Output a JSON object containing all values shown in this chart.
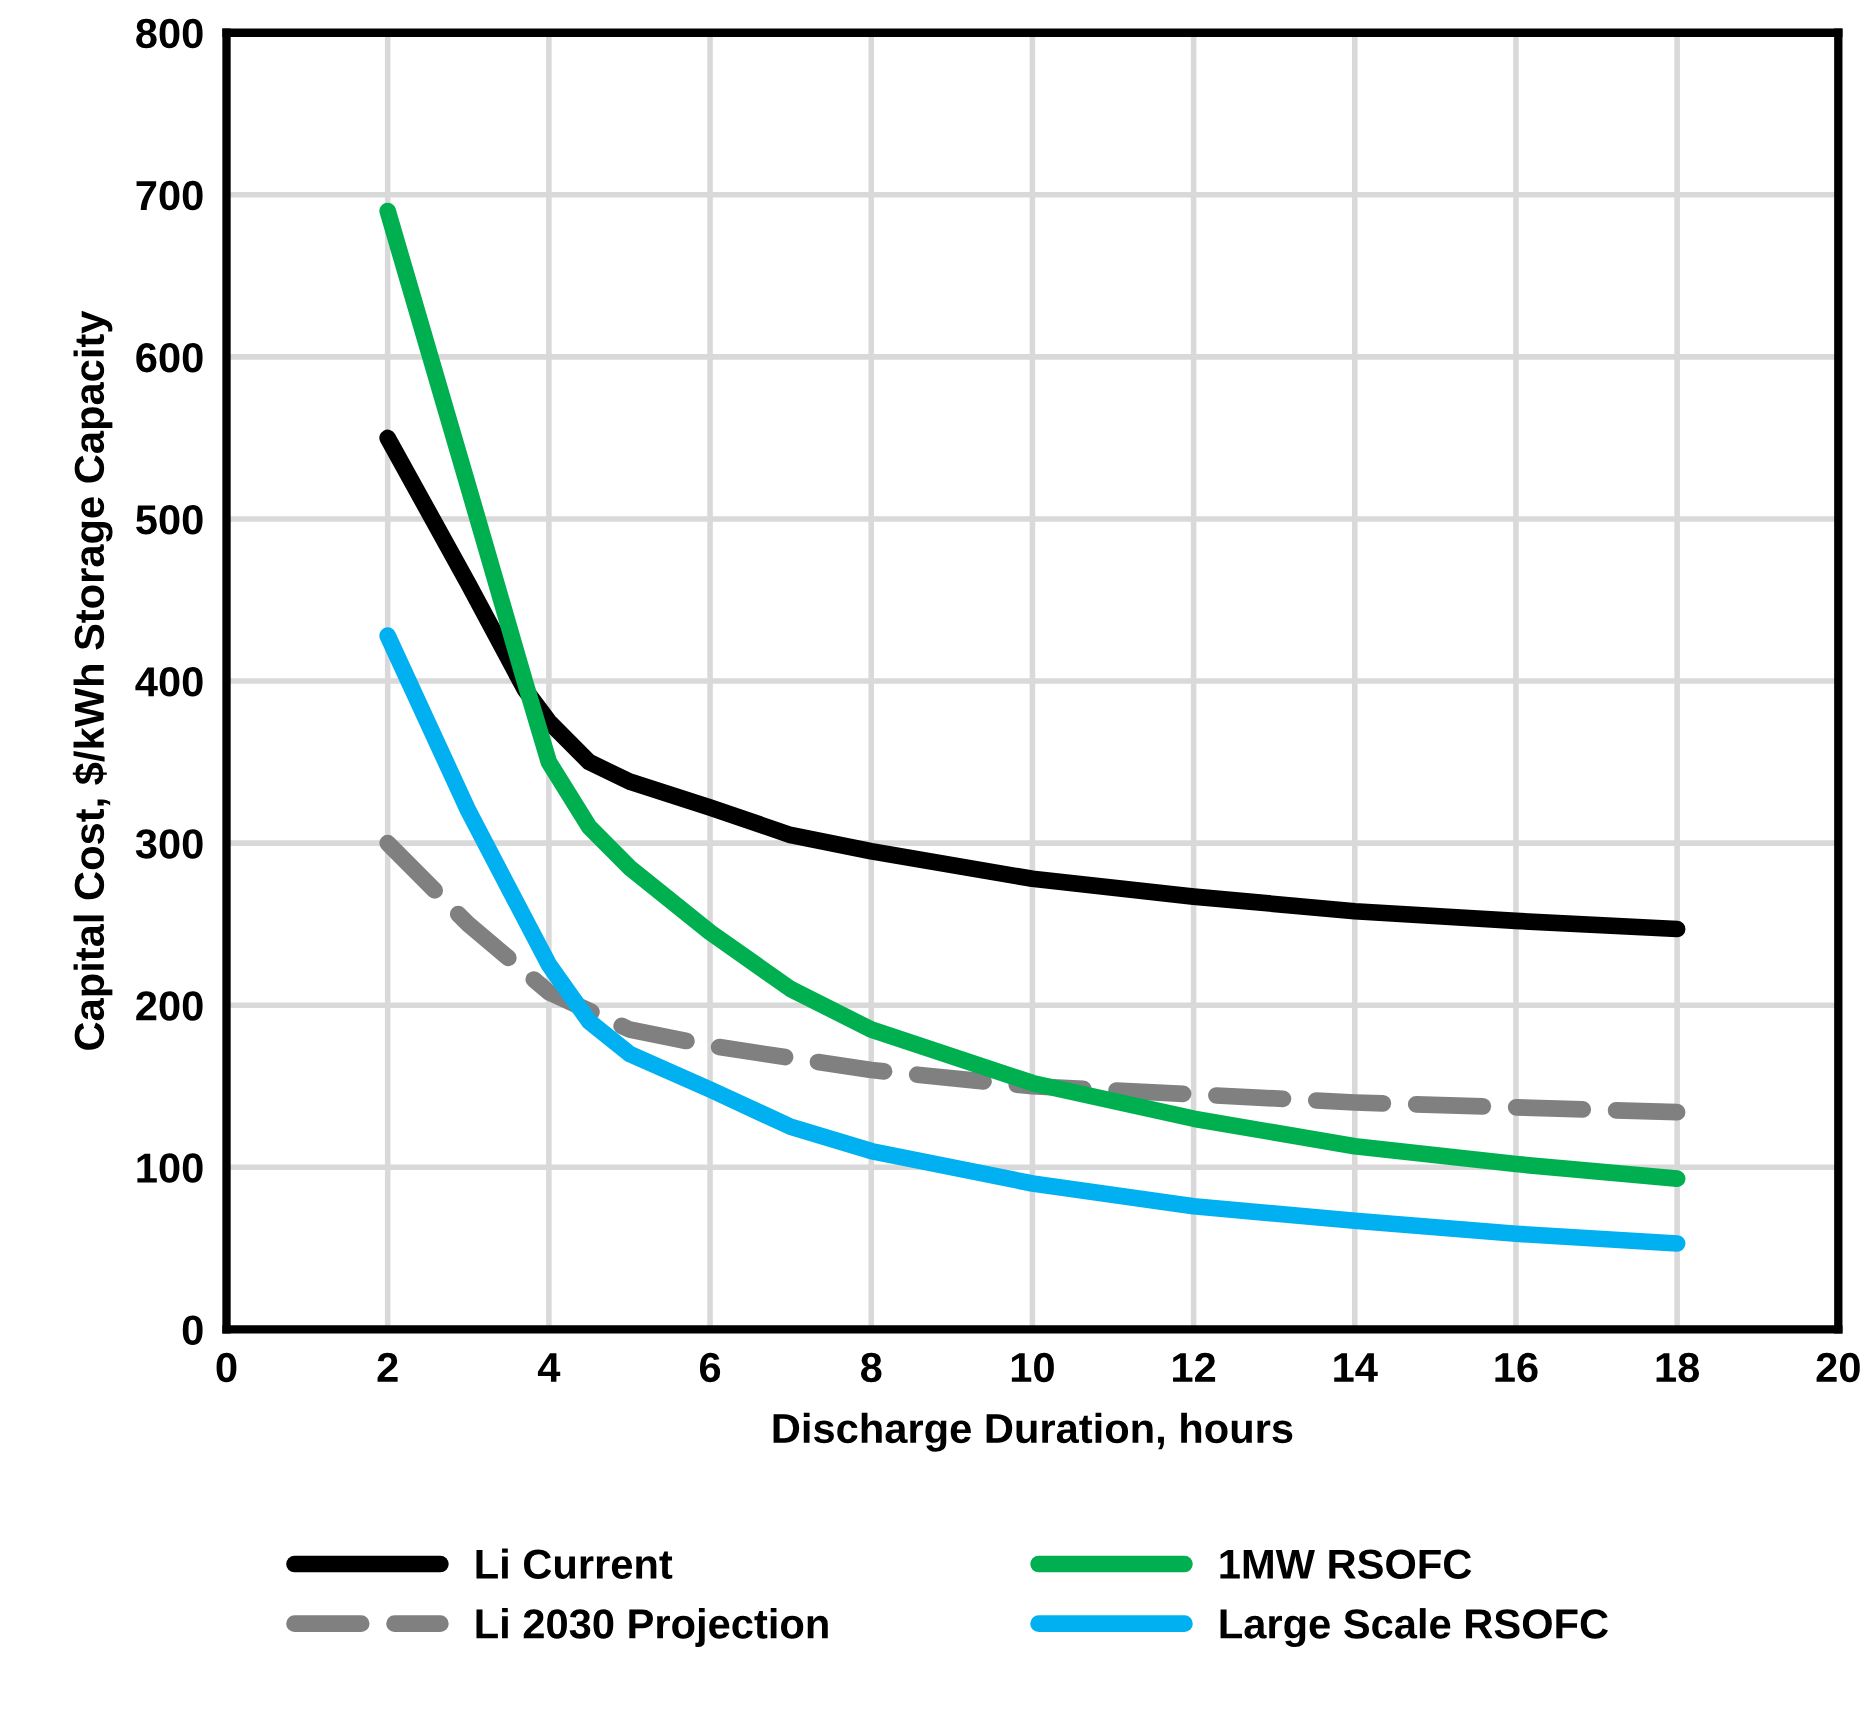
{
  "chart_data": {
    "type": "line",
    "xlabel": "Discharge Duration, hours",
    "ylabel": "Capital Cost, $/kWh Storage Capacity",
    "xlim": [
      0,
      20
    ],
    "xticks": [
      0,
      2,
      4,
      6,
      8,
      10,
      12,
      14,
      16,
      18,
      20
    ],
    "ylim": [
      0,
      800
    ],
    "yticks": [
      0,
      100,
      200,
      300,
      400,
      500,
      600,
      700,
      800
    ],
    "grid": true,
    "legend": "bottom",
    "marker": "none",
    "series": [
      {
        "name": "Li Current",
        "color": "#000000",
        "line_style": "solid",
        "x": [
          2,
          3,
          3.7,
          4,
          4.5,
          5,
          6,
          7,
          8,
          10,
          12,
          14,
          16,
          18
        ],
        "values": [
          550,
          460,
          395,
          375,
          350,
          338,
          322,
          305,
          295,
          278,
          267,
          258,
          252,
          247
        ]
      },
      {
        "name": "Li 2030 Projection",
        "color": "#808080",
        "line_style": "dashed",
        "x": [
          2,
          3,
          4,
          5,
          6,
          8,
          10,
          12,
          14,
          16,
          18
        ],
        "values": [
          300,
          250,
          208,
          185,
          175,
          160,
          150,
          145,
          140,
          137,
          134
        ]
      },
      {
        "name": "1MW RSOFC",
        "color": "#00b050",
        "line_style": "solid",
        "x": [
          2,
          3,
          3.7,
          4,
          4.5,
          5,
          6,
          7,
          8,
          10,
          12,
          14,
          16,
          18
        ],
        "values": [
          690,
          520,
          400,
          350,
          310,
          285,
          245,
          210,
          185,
          152,
          130,
          113,
          102,
          93
        ]
      },
      {
        "name": "Large Scale RSOFC",
        "color": "#00b0f0",
        "line_style": "solid",
        "x": [
          2,
          3,
          4,
          4.5,
          5,
          6,
          7,
          8,
          10,
          12,
          14,
          16,
          18
        ],
        "values": [
          428,
          320,
          225,
          190,
          170,
          148,
          125,
          110,
          90,
          76,
          67,
          59,
          53
        ]
      }
    ]
  }
}
